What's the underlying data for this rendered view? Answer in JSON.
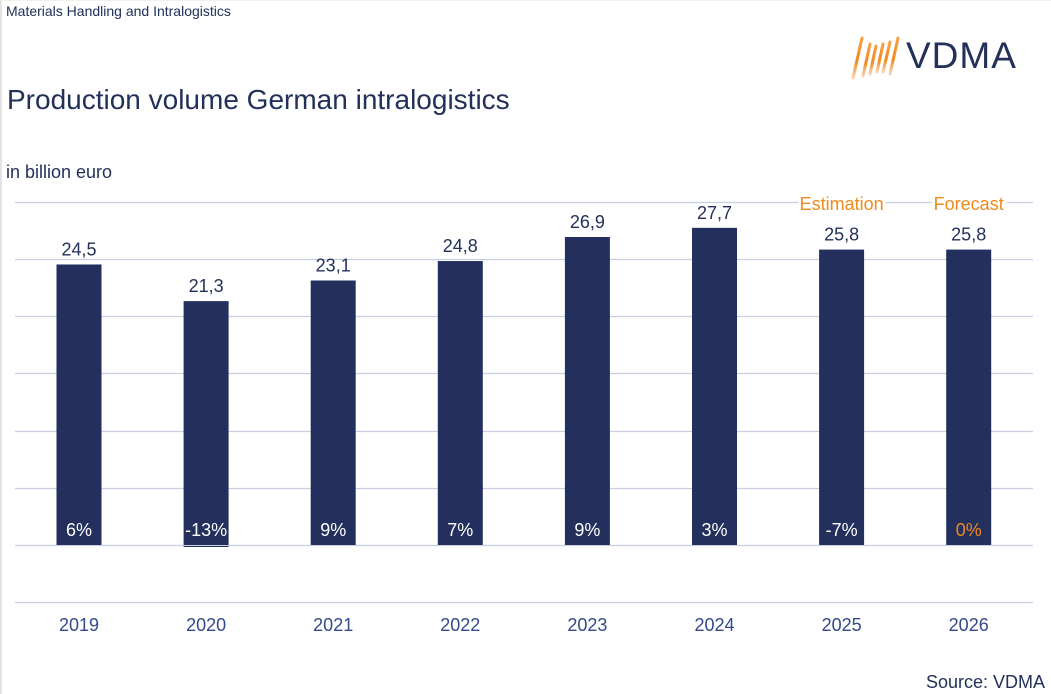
{
  "header": {
    "section_label": "Materials Handling and Intralogistics",
    "title": "Production volume German intralogistics",
    "unit_label": "in billion euro",
    "logo_text": "VDMA",
    "logo_icon": "vdma-stripes-logo"
  },
  "footer": {
    "source": "Source: VDMA"
  },
  "colors": {
    "bar": "#232f5c",
    "text": "#23305a",
    "accent": "#f08a1c",
    "grid": "#c9cfe1",
    "tick": "#34498a"
  },
  "chart_data": {
    "type": "bar",
    "title": "Production volume German intralogistics",
    "ylabel": "in billion euro",
    "xlabel": "",
    "categories": [
      "2019",
      "2020",
      "2021",
      "2022",
      "2023",
      "2024",
      "2025",
      "2026"
    ],
    "values": [
      24.5,
      21.3,
      23.1,
      24.8,
      26.9,
      27.7,
      25.8,
      25.8
    ],
    "value_labels": [
      "24,5",
      "21,3",
      "23,1",
      "24,8",
      "26,9",
      "27,7",
      "25,8",
      "25,8"
    ],
    "growth_labels": [
      "6%",
      "-13%",
      "9%",
      "7%",
      "9%",
      "3%",
      "-7%",
      "0%"
    ],
    "growth_label_highlight": [
      false,
      false,
      false,
      false,
      false,
      false,
      false,
      true
    ],
    "annotations": [
      {
        "category": "2025",
        "text": "Estimation"
      },
      {
        "category": "2026",
        "text": "Forecast"
      }
    ],
    "ylim": [
      -5,
      30
    ],
    "grid": true,
    "grid_step": 5,
    "legend": "none"
  }
}
